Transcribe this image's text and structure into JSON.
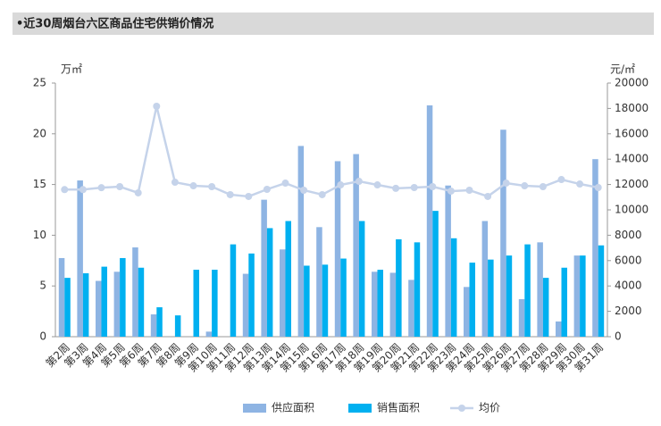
{
  "chart_data": {
    "type": "bar_line",
    "title": "•近30周烟台六区商品住宅供销价情况",
    "y_label": "万㎡",
    "y2_label": "元/㎡",
    "categories": [
      "第2周",
      "第3周",
      "第4周",
      "第5周",
      "第6周",
      "第7周",
      "第8周",
      "第9周",
      "第10周",
      "第11周",
      "第12周",
      "第13周",
      "第14周",
      "第15周",
      "第16周",
      "第17周",
      "第18周",
      "第19周",
      "第20周",
      "第21周",
      "第22周",
      "第23周",
      "第24周",
      "第25周",
      "第26周",
      "第27周",
      "第28周",
      "第29周",
      "第30周",
      "第31周"
    ],
    "series": [
      {
        "name": "供应面积",
        "color": "#8eb4e3",
        "kind": "bar",
        "values": [
          7.75,
          15.4,
          5.5,
          6.4,
          8.8,
          2.2,
          0,
          0,
          0.5,
          0,
          6.2,
          13.5,
          8.6,
          18.8,
          10.8,
          17.3,
          18.0,
          6.4,
          6.3,
          5.6,
          22.8,
          14.9,
          4.9,
          11.4,
          20.4,
          3.7,
          9.3,
          1.5,
          8.0,
          17.5
        ]
      },
      {
        "name": "销售面积",
        "color": "#00b0f0",
        "kind": "bar",
        "values": [
          5.8,
          6.25,
          6.9,
          7.75,
          6.8,
          2.9,
          2.1,
          6.6,
          6.6,
          9.1,
          8.2,
          10.7,
          11.4,
          7.0,
          7.1,
          7.7,
          11.4,
          6.6,
          9.6,
          9.3,
          12.4,
          9.7,
          7.3,
          7.6,
          8.0,
          9.1,
          5.8,
          6.8,
          8.0,
          9.0
        ]
      },
      {
        "name": "均价",
        "color": "#c5d3ea",
        "kind": "line",
        "axis": "y2",
        "values": [
          11600,
          11600,
          11750,
          11830,
          11340,
          18170,
          12180,
          11900,
          11830,
          11200,
          11060,
          11620,
          12110,
          11550,
          11200,
          11970,
          12250,
          11970,
          11700,
          11760,
          11830,
          11480,
          11550,
          11060,
          12110,
          11900,
          11830,
          12390,
          12040,
          11760
        ]
      }
    ],
    "ylim": [
      0,
      25
    ],
    "yticks": [
      0,
      5,
      10,
      15,
      20,
      25
    ],
    "y2lim": [
      0,
      20000
    ],
    "y2ticks": [
      0,
      2000,
      4000,
      6000,
      8000,
      10000,
      12000,
      14000,
      16000,
      18000,
      20000
    ],
    "legend": "bottom"
  }
}
